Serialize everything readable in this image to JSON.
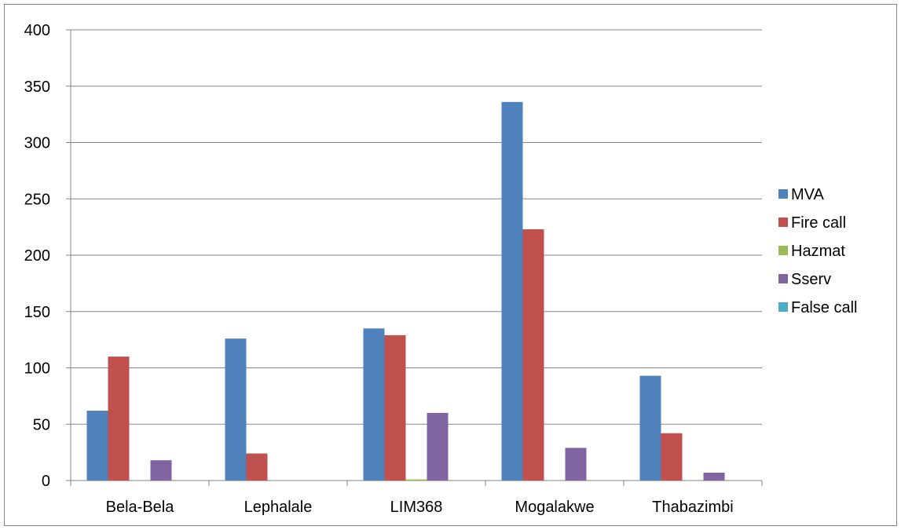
{
  "chart_data": {
    "type": "bar",
    "categories": [
      "Bela-Bela",
      "Lephalale",
      "LIM368",
      "Mogalakwe",
      "Thabazimbi"
    ],
    "series": [
      {
        "name": "MVA",
        "color": "#4F81BD",
        "values": [
          62,
          126,
          135,
          336,
          93
        ]
      },
      {
        "name": "Fire call",
        "color": "#C0504D",
        "values": [
          110,
          24,
          129,
          223,
          42
        ]
      },
      {
        "name": "Hazmat",
        "color": "#9BBB59",
        "values": [
          0,
          0,
          1,
          0,
          0
        ]
      },
      {
        "name": "Sserv",
        "color": "#8064A2",
        "values": [
          18,
          0,
          60,
          29,
          7
        ]
      },
      {
        "name": "False call",
        "color": "#4BACC6",
        "values": [
          0,
          0,
          0,
          0,
          0
        ]
      }
    ],
    "ylim": [
      0,
      400
    ],
    "yticks": [
      "0",
      "50",
      "100",
      "150",
      "200",
      "250",
      "300",
      "350",
      "400"
    ],
    "title": "",
    "xlabel": "",
    "ylabel": "",
    "grid": true,
    "legend_position": "right"
  }
}
